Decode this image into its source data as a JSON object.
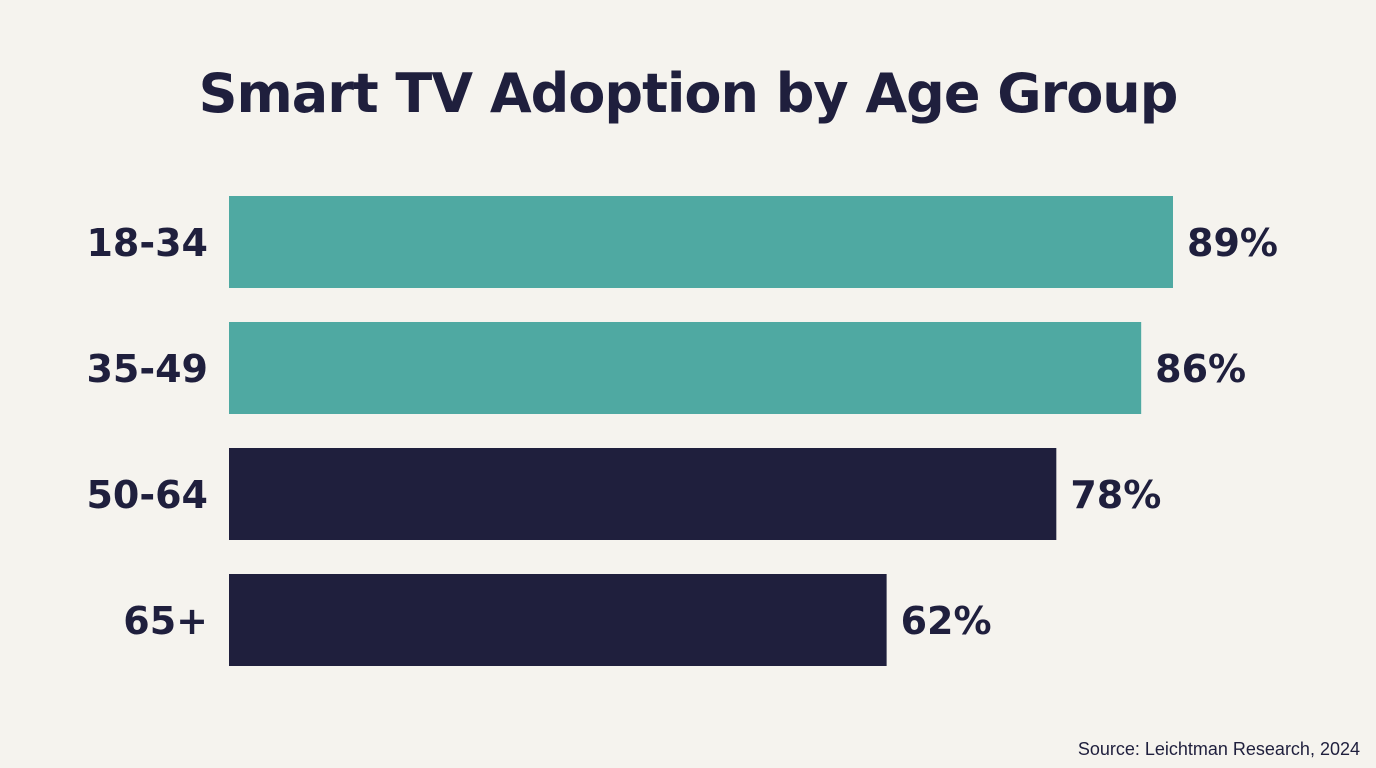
{
  "chart_data": {
    "type": "bar",
    "orientation": "horizontal",
    "title": "Smart TV Adoption by Age Group",
    "categories": [
      "18-34",
      "35-49",
      "50-64",
      "65+"
    ],
    "values": [
      89,
      86,
      78,
      62
    ],
    "value_labels": [
      "89%",
      "86%",
      "78%",
      "62%"
    ],
    "bar_colors": [
      "#4FA9A2",
      "#4FA9A2",
      "#1F1F3D",
      "#1F1F3D"
    ],
    "xlim": [
      0,
      100
    ],
    "grid": false,
    "xlabel": "",
    "ylabel": ""
  },
  "source": "Source: Leichtman Research, 2024",
  "colors": {
    "background": "#F5F3EE",
    "text": "#1F1F3D",
    "teal": "#4FA9A2",
    "navy": "#1F1F3D"
  }
}
